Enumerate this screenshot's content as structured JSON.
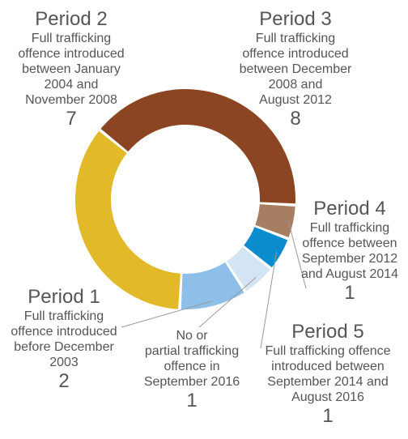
{
  "chart_data": {
    "type": "donut",
    "colors": {
      "period2": "#E2B928",
      "period3": "#8B4522",
      "period4": "#A77E62",
      "period5": "#0A8CCE",
      "none": "#D3E4F4",
      "period1": "#8DBFE8"
    },
    "segments": [
      {
        "id": "period2",
        "title": "Period 2",
        "desc": "Full trafficking\noffence introduced\nbetween January\n2004 and\nNovember 2008",
        "value": 7
      },
      {
        "id": "period3",
        "title": "Period 3",
        "desc": "Full trafficking\noffence introduced\nbetween December\n2008 and\nAugust 2012",
        "value": 8
      },
      {
        "id": "period4",
        "title": "Period 4",
        "desc": "Full trafficking\noffence between\nSeptember 2012\nand August 2014",
        "value": 1
      },
      {
        "id": "period5",
        "title": "Period 5",
        "desc": "Full trafficking offence\nintroduced between\nSeptember 2014 and\nAugust 2016",
        "value": 1
      },
      {
        "id": "none",
        "title": "",
        "desc": "No or\npartial trafficking\noffence in\nSeptember 2016",
        "value": 1
      },
      {
        "id": "period1",
        "title": "Period 1",
        "desc": "Full trafficking\noffence introduced\nbefore December\n2003",
        "value": 2
      }
    ]
  }
}
